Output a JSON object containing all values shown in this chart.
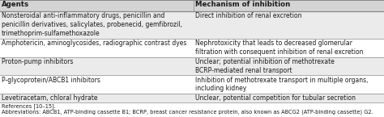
{
  "col1_header": "Agents",
  "col2_header": "Mechanism of inhibition",
  "col_split": 0.505,
  "rows": [
    {
      "agent": "Nonsteroidal anti-inflammatory drugs, penicillin and\npenicillin derivatives, salicylates, probenecid, gemfibrozil,\ntrimethoprim-sulfamethoxazole",
      "mechanism": "Direct inhibition of renal excretion",
      "shaded": true,
      "line_count": 3
    },
    {
      "agent": "Amphotericin, aminoglycosides, radiographic contrast dyes",
      "mechanism": "Nephrotoxicity that leads to decreased glomerular\nfiltration with consequent inhibition of renal excretion",
      "shaded": false,
      "line_count": 2
    },
    {
      "agent": "Proton-pump inhibitors",
      "mechanism": "Unclear; potential inhibition of methotrexate\nBCRP-mediated renal transport",
      "shaded": true,
      "line_count": 2
    },
    {
      "agent": "P-glycoprotein/ABCB1 inhibitors",
      "mechanism": "Inhibition of methotrexate transport in multiple organs,\nincluding kidney",
      "shaded": false,
      "line_count": 2
    },
    {
      "agent": "Levetiracetam, chloral hydrate",
      "mechanism": "Unclear, potential competition for tubular secretion",
      "shaded": true,
      "line_count": 1
    }
  ],
  "footer1": "References [10–15].",
  "footer2": "Abbreviations: ABCB1, ATP-binding cassette B1; BCRP, breast cancer resistance protein, also known as ABCG2 (ATP-binding cassette) G2.",
  "header_bg": "#d4d4d4",
  "shaded_bg": "#ebebeb",
  "white_bg": "#ffffff",
  "border_color": "#888888",
  "text_color": "#1a1a1a",
  "header_fontsize": 6.2,
  "cell_fontsize": 5.5,
  "footer_fontsize": 4.8,
  "fig_width": 4.74,
  "fig_height": 1.45,
  "dpi": 100
}
